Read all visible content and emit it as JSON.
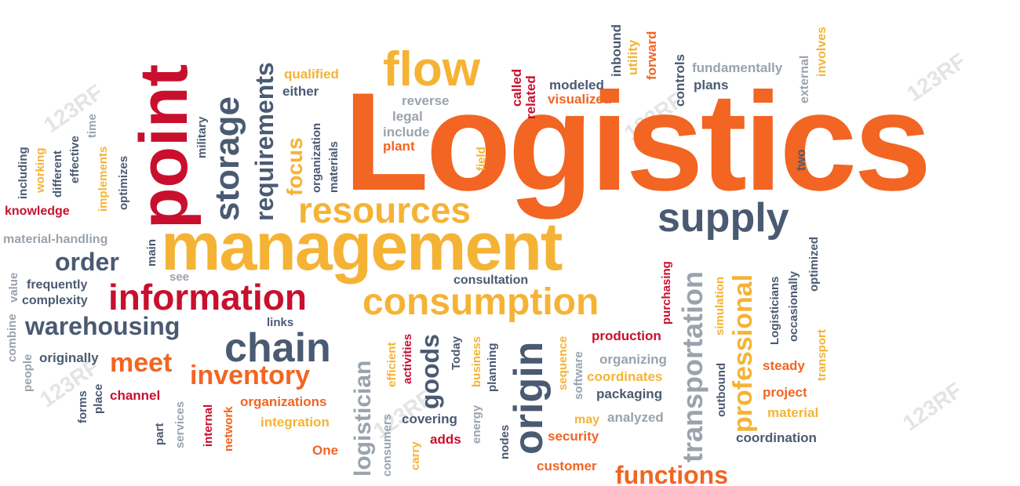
{
  "colors": {
    "red": "#c8102e",
    "orange": "#f26522",
    "yellow": "#f5b335",
    "slate": "#4a5a72",
    "gray": "#9aa3ad"
  },
  "words": [
    {
      "text": "Logistics",
      "color": "orange"
    },
    {
      "text": "management",
      "color": "yellow"
    },
    {
      "text": "point",
      "color": "red"
    },
    {
      "text": "flow",
      "color": "yellow"
    },
    {
      "text": "storage",
      "color": "slate"
    },
    {
      "text": "requirements",
      "color": "slate"
    },
    {
      "text": "resources",
      "color": "yellow"
    },
    {
      "text": "supply",
      "color": "slate"
    },
    {
      "text": "information",
      "color": "red"
    },
    {
      "text": "consumption",
      "color": "yellow"
    },
    {
      "text": "chain",
      "color": "slate"
    },
    {
      "text": "warehousing",
      "color": "slate"
    },
    {
      "text": "inventory",
      "color": "orange"
    },
    {
      "text": "meet",
      "color": "orange"
    },
    {
      "text": "order",
      "color": "slate"
    },
    {
      "text": "origin",
      "color": "slate"
    },
    {
      "text": "transportation",
      "color": "gray"
    },
    {
      "text": "professional",
      "color": "yellow"
    },
    {
      "text": "functions",
      "color": "orange"
    },
    {
      "text": "logistician",
      "color": "gray"
    },
    {
      "text": "goods",
      "color": "slate"
    },
    {
      "text": "focus",
      "color": "yellow"
    },
    {
      "text": "qualified",
      "color": "yellow"
    },
    {
      "text": "either",
      "color": "slate"
    },
    {
      "text": "reverse",
      "color": "gray"
    },
    {
      "text": "legal",
      "color": "gray"
    },
    {
      "text": "include",
      "color": "gray"
    },
    {
      "text": "plant",
      "color": "orange"
    },
    {
      "text": "called",
      "color": "red"
    },
    {
      "text": "related",
      "color": "red"
    },
    {
      "text": "field",
      "color": "yellow"
    },
    {
      "text": "modeled",
      "color": "slate"
    },
    {
      "text": "visualized",
      "color": "orange"
    },
    {
      "text": "inbound",
      "color": "slate"
    },
    {
      "text": "utility",
      "color": "yellow"
    },
    {
      "text": "forward",
      "color": "orange"
    },
    {
      "text": "controls",
      "color": "slate"
    },
    {
      "text": "fundamentally",
      "color": "gray"
    },
    {
      "text": "plans",
      "color": "slate"
    },
    {
      "text": "external",
      "color": "gray"
    },
    {
      "text": "involves",
      "color": "yellow"
    },
    {
      "text": "two",
      "color": "slate"
    },
    {
      "text": "organization",
      "color": "slate"
    },
    {
      "text": "materials",
      "color": "slate"
    },
    {
      "text": "military",
      "color": "slate"
    },
    {
      "text": "optimizes",
      "color": "slate"
    },
    {
      "text": "time",
      "color": "gray"
    },
    {
      "text": "effective",
      "color": "slate"
    },
    {
      "text": "different",
      "color": "slate"
    },
    {
      "text": "working",
      "color": "yellow"
    },
    {
      "text": "including",
      "color": "slate"
    },
    {
      "text": "implements",
      "color": "yellow"
    },
    {
      "text": "knowledge",
      "color": "red"
    },
    {
      "text": "material-handling",
      "color": "gray"
    },
    {
      "text": "main",
      "color": "slate"
    },
    {
      "text": "value",
      "color": "gray"
    },
    {
      "text": "frequently",
      "color": "slate"
    },
    {
      "text": "complexity",
      "color": "slate"
    },
    {
      "text": "see",
      "color": "gray"
    },
    {
      "text": "combine",
      "color": "gray"
    },
    {
      "text": "people",
      "color": "gray"
    },
    {
      "text": "originally",
      "color": "slate"
    },
    {
      "text": "forms",
      "color": "slate"
    },
    {
      "text": "place",
      "color": "slate"
    },
    {
      "text": "channel",
      "color": "red"
    },
    {
      "text": "part",
      "color": "slate"
    },
    {
      "text": "services",
      "color": "gray"
    },
    {
      "text": "internal",
      "color": "red"
    },
    {
      "text": "network",
      "color": "orange"
    },
    {
      "text": "organizations",
      "color": "orange"
    },
    {
      "text": "integration",
      "color": "yellow"
    },
    {
      "text": "One",
      "color": "orange"
    },
    {
      "text": "links",
      "color": "slate"
    },
    {
      "text": "consumers",
      "color": "gray"
    },
    {
      "text": "efficient",
      "color": "yellow"
    },
    {
      "text": "carry",
      "color": "yellow"
    },
    {
      "text": "activities",
      "color": "red"
    },
    {
      "text": "adds",
      "color": "red"
    },
    {
      "text": "covering",
      "color": "slate"
    },
    {
      "text": "Today",
      "color": "slate"
    },
    {
      "text": "business",
      "color": "yellow"
    },
    {
      "text": "energy",
      "color": "gray"
    },
    {
      "text": "planning",
      "color": "slate"
    },
    {
      "text": "nodes",
      "color": "slate"
    },
    {
      "text": "consultation",
      "color": "slate"
    },
    {
      "text": "sequence",
      "color": "yellow"
    },
    {
      "text": "software",
      "color": "gray"
    },
    {
      "text": "production",
      "color": "red"
    },
    {
      "text": "organizing",
      "color": "gray"
    },
    {
      "text": "coordinates",
      "color": "yellow"
    },
    {
      "text": "packaging",
      "color": "slate"
    },
    {
      "text": "may",
      "color": "yellow"
    },
    {
      "text": "analyzed",
      "color": "gray"
    },
    {
      "text": "security",
      "color": "orange"
    },
    {
      "text": "customer",
      "color": "orange"
    },
    {
      "text": "purchasing",
      "color": "red"
    },
    {
      "text": "simulation",
      "color": "yellow"
    },
    {
      "text": "outbound",
      "color": "slate"
    },
    {
      "text": "Logisticians",
      "color": "slate"
    },
    {
      "text": "occasionally",
      "color": "slate"
    },
    {
      "text": "optimized",
      "color": "slate"
    },
    {
      "text": "transport",
      "color": "yellow"
    },
    {
      "text": "steady",
      "color": "orange"
    },
    {
      "text": "project",
      "color": "orange"
    },
    {
      "text": "material",
      "color": "yellow"
    },
    {
      "text": "coordination",
      "color": "slate"
    }
  ],
  "watermarks": [
    "123RF",
    "123RF",
    "123RF",
    "123RF",
    "123RF",
    "123RF"
  ]
}
